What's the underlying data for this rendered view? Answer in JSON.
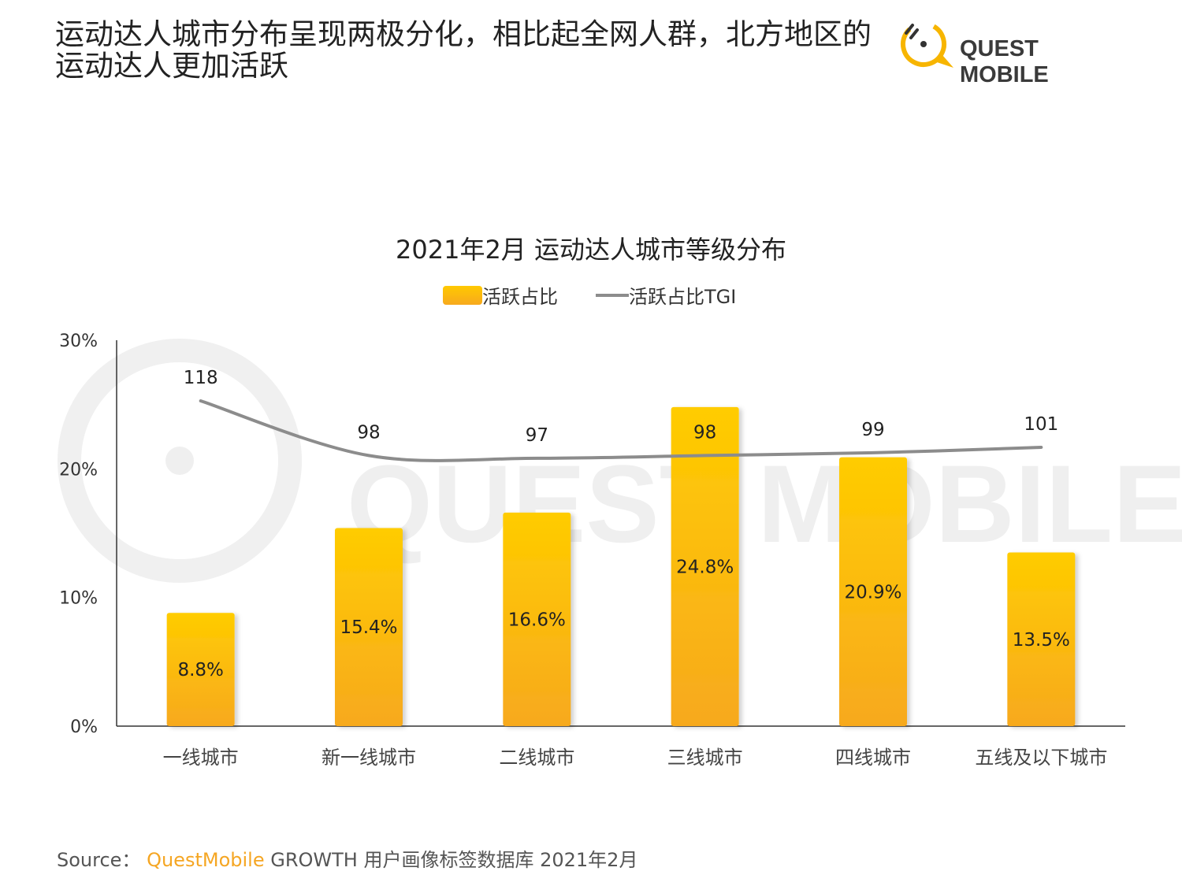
{
  "header": {
    "title": "运动达人城市分布呈现两极分化，相比起全网人群，北方地区的运动达人更加活跃",
    "logo_text": "QUEST MOBILE"
  },
  "source": {
    "label": "Source：",
    "brand": "QuestMobile",
    "text": "GROWTH 用户画像标签数据库 2021年2月"
  },
  "colors": {
    "bar_top": "#ffcc00",
    "bar_bottom": "#f7a91e",
    "line": "#8c8c8c",
    "brand": "#f5a623"
  },
  "chart_data": {
    "type": "bar",
    "title": "2021年2月 运动达人城市等级分布",
    "categories": [
      "一线城市",
      "新一线城市",
      "二线城市",
      "三线城市",
      "四线城市",
      "五线及以下城市"
    ],
    "series": [
      {
        "name": "活跃占比",
        "type": "bar",
        "values": [
          8.8,
          15.4,
          16.6,
          24.8,
          20.9,
          13.5
        ],
        "labels": [
          "8.8%",
          "15.4%",
          "16.6%",
          "24.8%",
          "20.9%",
          "13.5%"
        ]
      },
      {
        "name": "活跃占比TGI",
        "type": "line",
        "values": [
          118,
          98,
          97,
          98,
          99,
          101
        ],
        "labels": [
          "118",
          "98",
          "97",
          "98",
          "99",
          "101"
        ]
      }
    ],
    "yaxis": {
      "ticks": [
        "0%",
        "10%",
        "20%",
        "30%"
      ],
      "ylim": [
        0,
        30
      ]
    },
    "legend": "top-center"
  }
}
